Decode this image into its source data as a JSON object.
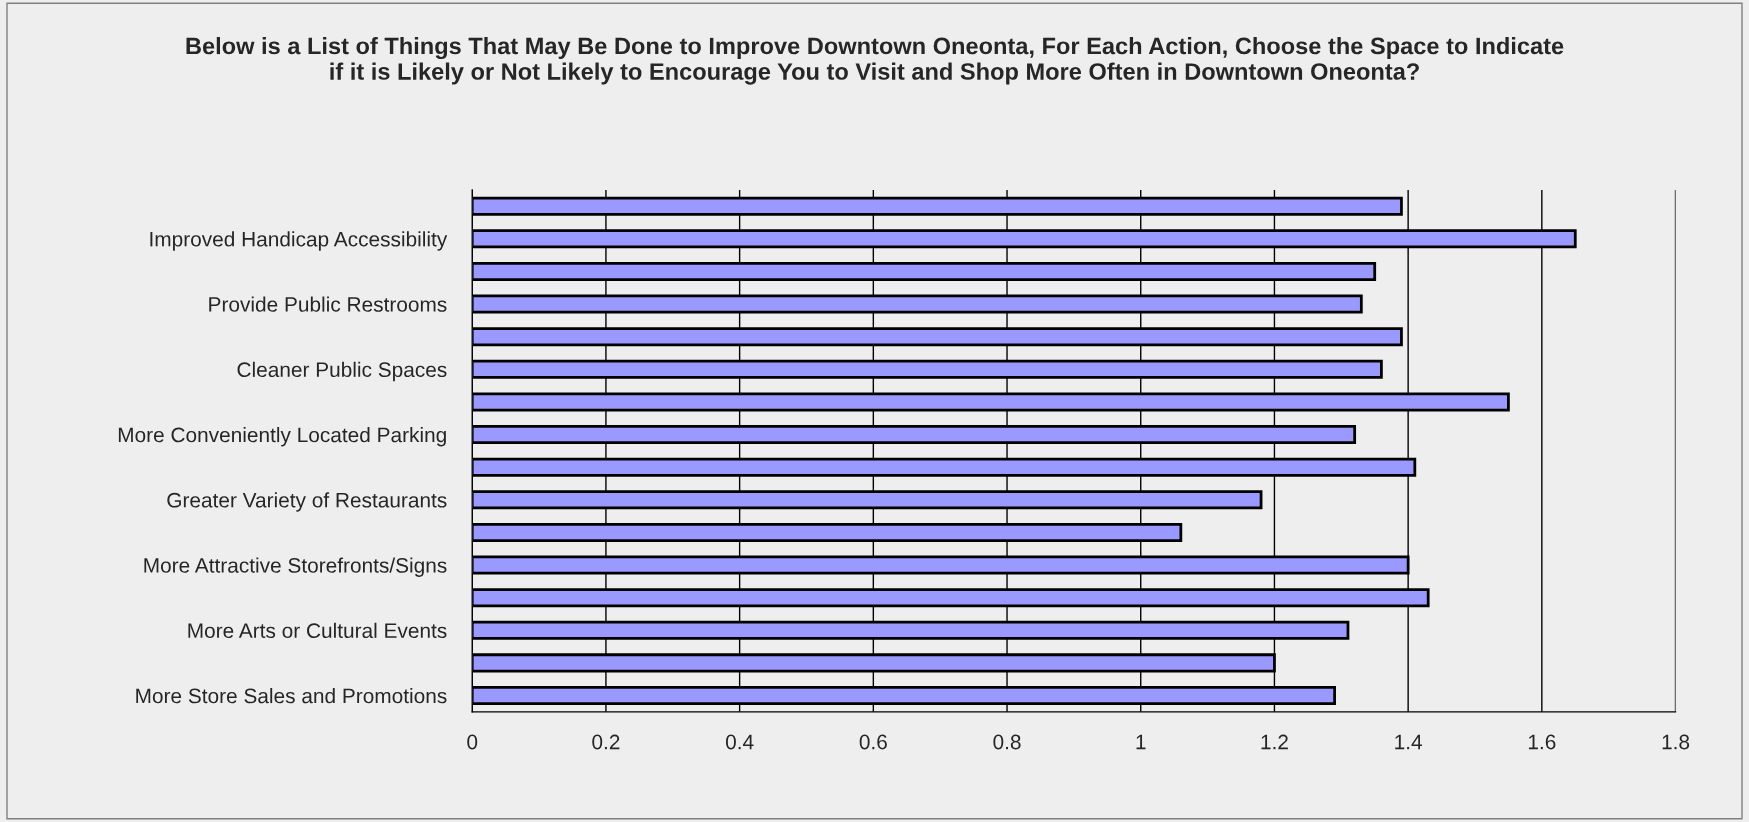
{
  "chart_data": {
    "type": "bar",
    "orientation": "horizontal",
    "title": "Below is a List of Things That May Be Done to Improve Downtown Oneonta, For Each Action, Choose the Space to Indicate if it is Likely or Not Likely to Encourage You to Visit and Shop More Often in Downtown Oneonta?",
    "categories": [
      null,
      "Improved Handicap Accessibility",
      null,
      "Provide Public Restrooms",
      null,
      "Cleaner Public Spaces",
      null,
      "More Conveniently Located Parking",
      null,
      "Greater Variety of Restaurants",
      null,
      "More Attractive Storefronts/Signs",
      null,
      "More Arts or Cultural Events",
      null,
      "More Store Sales and Promotions"
    ],
    "values": [
      1.39,
      1.65,
      1.35,
      1.33,
      1.39,
      1.36,
      1.55,
      1.32,
      1.41,
      1.18,
      1.06,
      1.4,
      1.43,
      1.31,
      1.2,
      1.29
    ],
    "color": "#9999ff",
    "xlim": [
      0,
      1.8
    ],
    "xticks": [
      0,
      0.2,
      0.4,
      0.6,
      0.8,
      1,
      1.2,
      1.4,
      1.6,
      1.8
    ],
    "grid": "x"
  }
}
